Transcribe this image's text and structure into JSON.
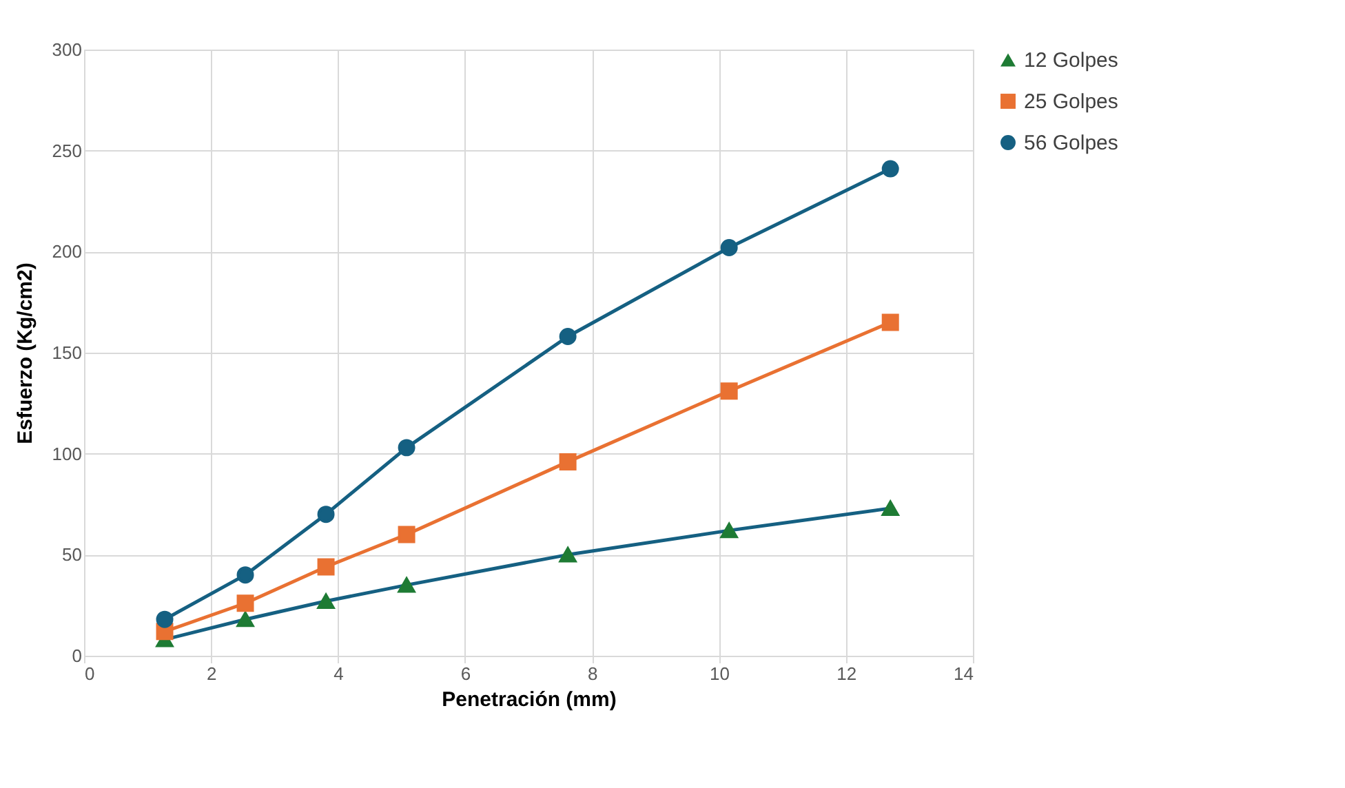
{
  "chart_data": {
    "type": "line",
    "xlabel": "Penetración (mm)",
    "ylabel": "Esfuerzo (Kg/cm2)",
    "x": [
      1.27,
      2.54,
      3.81,
      5.08,
      7.62,
      10.16,
      12.7
    ],
    "series": [
      {
        "name": "12 Golpes",
        "color": "#156082",
        "colors": [
          "#1e7b34",
          "#1e7b34",
          "#1e7b34",
          "#1e7b34",
          "#1e7b34",
          "#1e7b34",
          "#1e7b34"
        ],
        "marker": "triangle",
        "values": [
          8,
          18,
          27,
          35,
          50,
          62,
          73
        ]
      },
      {
        "name": "25 Golpes",
        "color": "#e97132",
        "marker": "square",
        "values": [
          12,
          26,
          44,
          60,
          96,
          131,
          165
        ]
      },
      {
        "name": "56 Golpes",
        "color": "#156082",
        "marker": "circle",
        "values": [
          18,
          40,
          70,
          103,
          158,
          202,
          241
        ]
      }
    ],
    "xlim": [
      0,
      14
    ],
    "xticks": [
      0,
      2,
      4,
      6,
      8,
      10,
      12,
      14
    ],
    "ylim": [
      0,
      300
    ],
    "yticks": [
      0,
      50,
      100,
      150,
      200,
      250,
      300
    ],
    "grid": true,
    "legend": "right",
    "line_style": "solid"
  }
}
